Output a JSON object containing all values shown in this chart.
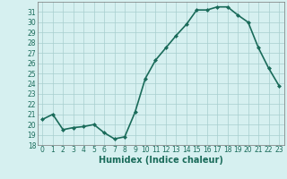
{
  "x": [
    0,
    1,
    2,
    3,
    4,
    5,
    6,
    7,
    8,
    9,
    10,
    11,
    12,
    13,
    14,
    15,
    16,
    17,
    18,
    19,
    20,
    21,
    22,
    23
  ],
  "y": [
    20.5,
    21.0,
    19.5,
    19.7,
    19.8,
    20.0,
    19.2,
    18.6,
    18.8,
    21.2,
    24.5,
    26.3,
    27.5,
    28.7,
    29.8,
    31.2,
    31.2,
    31.5,
    31.5,
    30.7,
    30.0,
    27.5,
    25.5,
    23.8
  ],
  "line_color": "#1a6b5a",
  "marker": "D",
  "marker_size": 2.0,
  "bg_color": "#d6f0f0",
  "grid_color": "#a8cece",
  "xlabel": "Humidex (Indice chaleur)",
  "xlim": [
    -0.5,
    23.5
  ],
  "ylim": [
    18,
    32
  ],
  "yticks": [
    18,
    19,
    20,
    21,
    22,
    23,
    24,
    25,
    26,
    27,
    28,
    29,
    30,
    31
  ],
  "xticks": [
    0,
    1,
    2,
    3,
    4,
    5,
    6,
    7,
    8,
    9,
    10,
    11,
    12,
    13,
    14,
    15,
    16,
    17,
    18,
    19,
    20,
    21,
    22,
    23
  ],
  "tick_fontsize": 5.5,
  "xlabel_fontsize": 7.0,
  "linewidth": 1.2
}
